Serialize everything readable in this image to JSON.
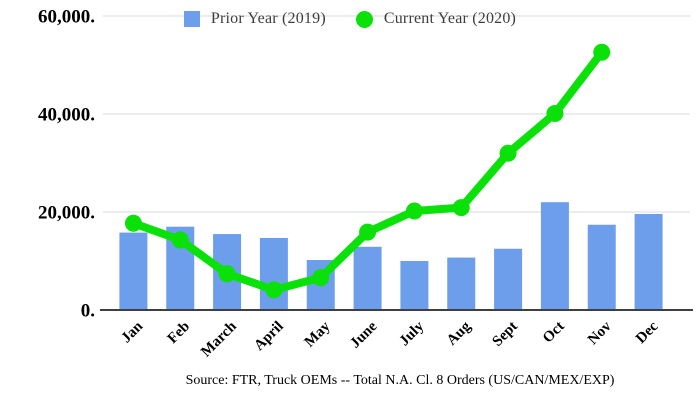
{
  "chart_data": {
    "type": "combo",
    "title": "",
    "xlabel": "",
    "ylabel": "",
    "categories": [
      "Jan",
      "Feb",
      "March",
      "April",
      "May",
      "June",
      "July",
      "Aug",
      "Sept",
      "Oct",
      "Nov",
      "Dec"
    ],
    "series": [
      {
        "name": "Prior Year (2019)",
        "type": "bar",
        "color": "#6d9eeb",
        "values": [
          15800,
          17000,
          15500,
          14700,
          10200,
          12900,
          10000,
          10700,
          12500,
          22000,
          17400,
          19600
        ]
      },
      {
        "name": "Current Year (2020)",
        "type": "line",
        "color": "#09e109",
        "values": [
          17700,
          14300,
          7400,
          4100,
          6600,
          15900,
          20200,
          20900,
          32000,
          40100,
          52600,
          null
        ]
      }
    ],
    "ylim": [
      0,
      60000
    ],
    "yticks": [
      {
        "value": 0,
        "label": "0."
      },
      {
        "value": 20000,
        "label": "20,000."
      },
      {
        "value": 40000,
        "label": "40,000."
      },
      {
        "value": 60000,
        "label": "60,000."
      }
    ],
    "grid": true,
    "grid_color": "#d9d9d9",
    "axis_color": "#3f3f3f",
    "tick_label_color": "#000000",
    "legend_position": "top"
  },
  "source_note": "Source: FTR, Truck OEMs -- Total N.A. Cl. 8 Orders (US/CAN/MEX/EXP)"
}
